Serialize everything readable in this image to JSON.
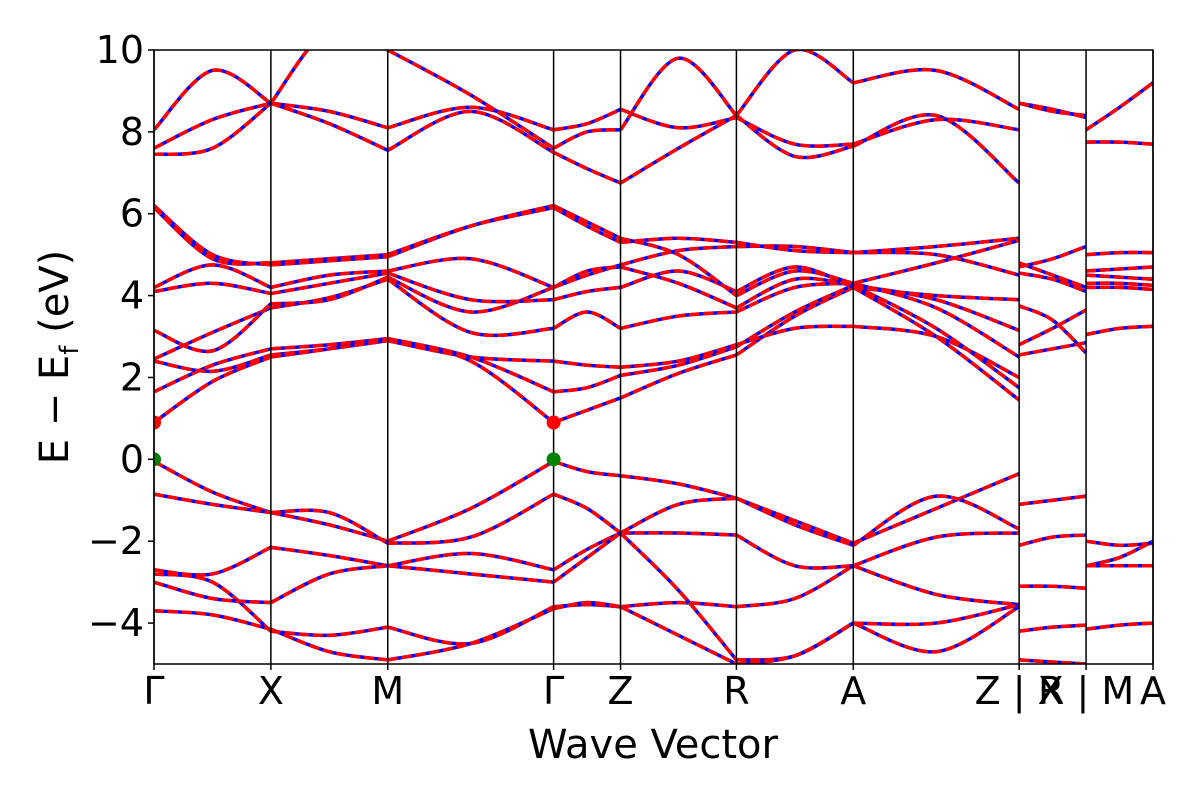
{
  "chart_data": {
    "type": "line",
    "title": "",
    "xlabel": "Wave Vector",
    "ylabel_parts": {
      "a": "E − E",
      "sub": "f",
      "b": " (eV)"
    },
    "ylim": [
      -5,
      10
    ],
    "yticks": [
      -4,
      -2,
      0,
      2,
      4,
      6,
      8,
      10
    ],
    "ytick_labels": [
      "−4",
      "−2",
      "0",
      "2",
      "4",
      "6",
      "8",
      "10"
    ],
    "kpoints": [
      {
        "x": 0.0,
        "label": "Γ"
      },
      {
        "x": 0.117,
        "label": "X"
      },
      {
        "x": 0.234,
        "label": "M"
      },
      {
        "x": 0.4,
        "label": "Γ"
      },
      {
        "x": 0.467,
        "label": "Z"
      },
      {
        "x": 0.583,
        "label": "R"
      },
      {
        "x": 0.7,
        "label": "A"
      },
      {
        "x": 0.866,
        "label": "Z | X"
      },
      {
        "x": 0.933,
        "label": "R | M"
      },
      {
        "x": 1.0,
        "label": "A"
      }
    ],
    "band_colors": {
      "dashed_line": "#ff0000",
      "solid_line": "#0000ff"
    },
    "segments": [
      {
        "x": [
          0.0,
          0.117
        ],
        "bands": [
          [
            -0.05,
            -0.8,
            -1.3
          ],
          [
            -0.85,
            -1.1,
            -1.3
          ],
          [
            0.9,
            1.9,
            2.5
          ],
          [
            1.65,
            2.3,
            2.7
          ],
          [
            2.4,
            2.15,
            2.55
          ],
          [
            2.45,
            3.1,
            3.7
          ],
          [
            3.15,
            2.65,
            3.8
          ],
          [
            4.1,
            4.3,
            4.05
          ],
          [
            4.2,
            4.75,
            4.2
          ],
          [
            6.2,
            5.0,
            4.75
          ],
          [
            6.15,
            4.9,
            4.8
          ],
          [
            -2.7,
            -2.8,
            -2.15
          ],
          [
            -2.8,
            -3.0,
            -4.2
          ],
          [
            -3.0,
            -3.4,
            -3.5
          ],
          [
            -3.7,
            -3.8,
            -4.15
          ],
          [
            7.45,
            7.6,
            8.7
          ],
          [
            7.6,
            8.3,
            8.7
          ],
          [
            8.05,
            9.5,
            8.7
          ]
        ]
      },
      {
        "x": [
          0.117,
          0.234
        ],
        "bands": [
          [
            -1.3,
            -1.6,
            -2.0
          ],
          [
            -1.3,
            -1.3,
            -2.05
          ],
          [
            2.5,
            2.7,
            2.95
          ],
          [
            2.7,
            2.8,
            2.95
          ],
          [
            2.55,
            2.7,
            2.9
          ],
          [
            3.7,
            3.95,
            4.4
          ],
          [
            3.8,
            3.9,
            4.45
          ],
          [
            4.05,
            4.3,
            4.55
          ],
          [
            4.2,
            4.5,
            4.6
          ],
          [
            4.75,
            4.85,
            4.95
          ],
          [
            4.8,
            4.9,
            5.0
          ],
          [
            -2.15,
            -2.35,
            -2.6
          ],
          [
            -4.2,
            -4.3,
            -4.1
          ],
          [
            -3.5,
            -2.8,
            -2.6
          ],
          [
            -4.15,
            -4.7,
            -4.9
          ],
          [
            8.7,
            8.2,
            7.55
          ],
          [
            8.7,
            8.5,
            8.1
          ],
          [
            8.7,
            10.5,
            10.0
          ]
        ]
      },
      {
        "x": [
          0.234,
          0.4
        ],
        "bands": [
          [
            -2.0,
            -1.2,
            -0.05
          ],
          [
            -2.05,
            -1.9,
            -0.85
          ],
          [
            2.95,
            2.4,
            0.9
          ],
          [
            2.95,
            2.5,
            1.65
          ],
          [
            2.9,
            2.5,
            2.4
          ],
          [
            4.4,
            3.1,
            3.2
          ],
          [
            4.45,
            3.6,
            4.2
          ],
          [
            4.55,
            3.9,
            3.9
          ],
          [
            4.6,
            4.9,
            4.2
          ],
          [
            4.95,
            5.7,
            6.2
          ],
          [
            5.0,
            5.7,
            6.15
          ],
          [
            -2.6,
            -2.3,
            -2.7
          ],
          [
            -4.1,
            -4.5,
            -3.6
          ],
          [
            -2.6,
            -2.8,
            -3.0
          ],
          [
            -4.9,
            -4.5,
            -3.65
          ],
          [
            7.55,
            8.5,
            7.5
          ],
          [
            8.1,
            8.6,
            8.05
          ],
          [
            10.0,
            8.9,
            7.6
          ]
        ]
      },
      {
        "x": [
          0.4,
          0.467
        ],
        "bands": [
          [
            -0.05,
            -0.3,
            -0.4
          ],
          [
            -0.85,
            -1.2,
            -1.8
          ],
          [
            0.9,
            1.2,
            1.5
          ],
          [
            1.65,
            1.75,
            2.05
          ],
          [
            2.4,
            2.3,
            2.25
          ],
          [
            3.2,
            3.6,
            3.2
          ],
          [
            4.2,
            4.6,
            4.7
          ],
          [
            3.9,
            4.1,
            4.2
          ],
          [
            4.2,
            4.5,
            4.75
          ],
          [
            6.2,
            5.8,
            5.4
          ],
          [
            6.15,
            5.7,
            5.3
          ],
          [
            -2.7,
            -2.2,
            -1.8
          ],
          [
            -3.6,
            -3.55,
            -3.6
          ],
          [
            -3.0,
            -2.4,
            -1.8
          ],
          [
            -3.65,
            -3.5,
            -3.6
          ],
          [
            7.5,
            7.1,
            6.75
          ],
          [
            8.05,
            8.2,
            8.55
          ],
          [
            7.6,
            8.0,
            8.05
          ]
        ]
      },
      {
        "x": [
          0.467,
          0.583
        ],
        "bands": [
          [
            -0.4,
            -0.6,
            -0.95
          ],
          [
            -1.8,
            -1.8,
            -1.85
          ],
          [
            1.5,
            2.1,
            2.55
          ],
          [
            2.05,
            2.3,
            2.75
          ],
          [
            2.25,
            2.4,
            2.8
          ],
          [
            3.2,
            3.5,
            3.6
          ],
          [
            4.7,
            4.3,
            3.7
          ],
          [
            4.2,
            4.6,
            4.1
          ],
          [
            4.75,
            5.1,
            5.2
          ],
          [
            5.4,
            5.0,
            4.0
          ],
          [
            5.3,
            5.4,
            5.3
          ],
          [
            -1.8,
            -1.1,
            -0.95
          ],
          [
            -3.6,
            -3.5,
            -3.6
          ],
          [
            -1.8,
            -3.2,
            -4.9
          ],
          [
            -3.6,
            -4.3,
            -5.0
          ],
          [
            6.75,
            7.6,
            8.4
          ],
          [
            8.55,
            8.1,
            8.35
          ],
          [
            8.05,
            9.8,
            8.4
          ]
        ]
      },
      {
        "x": [
          0.583,
          0.7
        ],
        "bands": [
          [
            -0.95,
            -1.5,
            -2.05
          ],
          [
            -1.85,
            -2.6,
            -2.6
          ],
          [
            2.55,
            3.5,
            4.2
          ],
          [
            2.75,
            3.6,
            4.25
          ],
          [
            2.8,
            3.2,
            3.25
          ],
          [
            3.6,
            4.2,
            4.3
          ],
          [
            3.7,
            4.4,
            4.25
          ],
          [
            4.1,
            4.7,
            4.2
          ],
          [
            5.2,
            5.2,
            5.05
          ],
          [
            4.0,
            4.6,
            4.3
          ],
          [
            5.3,
            5.1,
            5.05
          ],
          [
            -0.95,
            -1.6,
            -2.1
          ],
          [
            -3.6,
            -3.4,
            -2.6
          ],
          [
            -4.9,
            -4.8,
            -4.0
          ],
          [
            -5.0,
            -4.8,
            -4.0
          ],
          [
            8.4,
            7.4,
            7.65
          ],
          [
            8.35,
            7.7,
            7.7
          ],
          [
            8.4,
            10.0,
            9.2
          ]
        ]
      },
      {
        "x": [
          0.7,
          0.866
        ],
        "bands": [
          [
            -2.05,
            -1.2,
            -0.35
          ],
          [
            -2.6,
            -1.9,
            -1.8
          ],
          [
            4.2,
            3.0,
            1.45
          ],
          [
            4.25,
            3.2,
            1.75
          ],
          [
            3.25,
            3.0,
            2.0
          ],
          [
            4.3,
            3.7,
            2.5
          ],
          [
            4.25,
            3.9,
            3.15
          ],
          [
            4.2,
            4.0,
            3.9
          ],
          [
            5.05,
            5.2,
            5.4
          ],
          [
            4.3,
            4.8,
            5.35
          ],
          [
            5.05,
            5.0,
            4.5
          ],
          [
            -2.1,
            -0.9,
            -1.7
          ],
          [
            -2.6,
            -3.3,
            -3.55
          ],
          [
            -4.0,
            -4.0,
            -3.55
          ],
          [
            -4.0,
            -4.7,
            -3.6
          ],
          [
            7.65,
            8.4,
            6.75
          ],
          [
            7.7,
            8.3,
            8.05
          ],
          [
            9.2,
            9.5,
            8.55
          ]
        ]
      },
      {
        "x": [
          0.866,
          0.933
        ],
        "bands": [
          [
            -1.1,
            -1.0,
            -0.9
          ],
          [
            -2.1,
            -1.9,
            -1.85
          ],
          [
            2.55,
            2.7,
            2.85
          ],
          [
            2.8,
            3.2,
            3.65
          ],
          [
            3.75,
            3.4,
            2.6
          ],
          [
            4.55,
            4.4,
            4.1
          ],
          [
            4.7,
            4.9,
            5.2
          ],
          [
            4.8,
            4.5,
            4.2
          ],
          [
            -3.1,
            -3.1,
            -3.15
          ],
          [
            -4.9,
            -4.95,
            -5.0
          ],
          [
            -4.2,
            -4.1,
            -4.05
          ],
          [
            8.7,
            8.55,
            8.35
          ],
          [
            8.7,
            8.5,
            8.4
          ]
        ]
      },
      {
        "x": [
          0.933,
          1.0
        ],
        "bands": [
          [
            -2.0,
            -2.1,
            -2.05
          ],
          [
            -2.6,
            -2.6,
            -2.6
          ],
          [
            -2.6,
            -2.4,
            -2.0
          ],
          [
            4.2,
            4.2,
            4.15
          ],
          [
            4.3,
            4.3,
            4.25
          ],
          [
            4.5,
            4.45,
            4.4
          ],
          [
            4.6,
            4.65,
            4.7
          ],
          [
            5.0,
            5.05,
            5.05
          ],
          [
            3.05,
            3.2,
            3.25
          ],
          [
            -4.15,
            -4.05,
            -4.0
          ],
          [
            8.05,
            8.6,
            9.2
          ],
          [
            7.75,
            7.75,
            7.7
          ]
        ]
      }
    ],
    "markers": [
      {
        "x": 0.0,
        "y": 0.9,
        "color": "#ff0000"
      },
      {
        "x": 0.0,
        "y": 0.0,
        "color": "#008000"
      },
      {
        "x": 0.4,
        "y": 0.9,
        "color": "#ff0000"
      },
      {
        "x": 0.4,
        "y": 0.0,
        "color": "#008000"
      }
    ],
    "grid": false,
    "legend": "none"
  }
}
